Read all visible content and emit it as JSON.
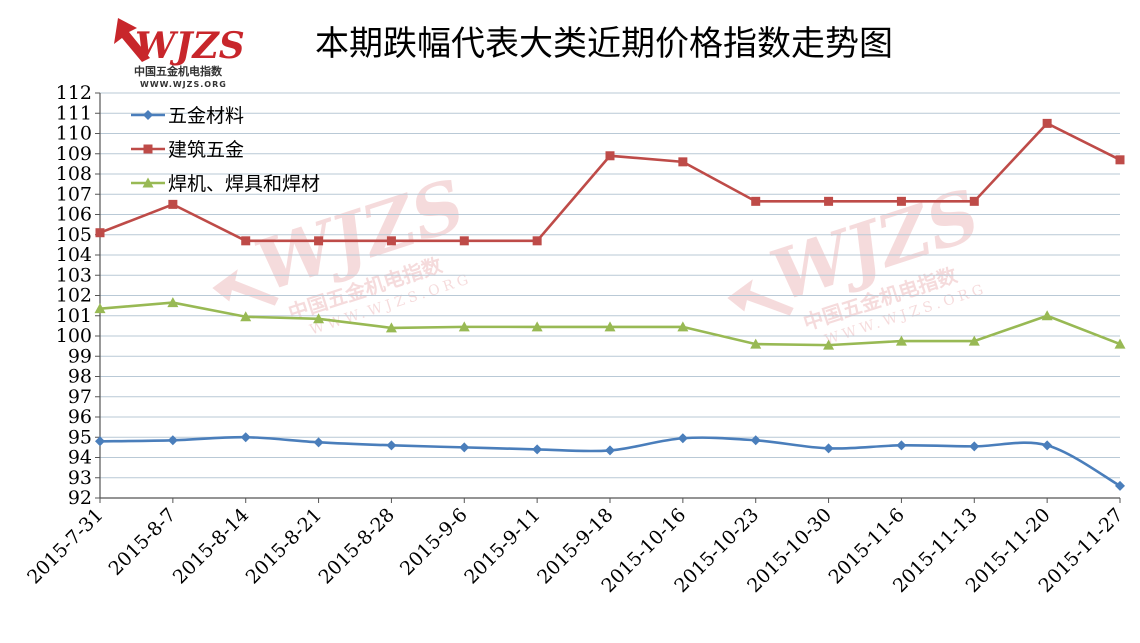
{
  "logo": {
    "mark": "WJZS",
    "subtitle": "中国五金机电指数",
    "url": "WWW.WJZS.ORG"
  },
  "chart_data": {
    "type": "line",
    "title": "本期跌幅代表大类近期价格指数走势图",
    "xlabel": "",
    "ylabel": "",
    "ylim": [
      92,
      112
    ],
    "yticks": [
      92,
      93,
      94,
      95,
      96,
      97,
      98,
      99,
      100,
      101,
      102,
      103,
      104,
      105,
      106,
      107,
      108,
      109,
      110,
      111,
      112
    ],
    "grid": true,
    "legend": "top-left",
    "categories": [
      "2015-7-31",
      "2015-8-7",
      "2015-8-14",
      "2015-8-21",
      "2015-8-28",
      "2015-9-6",
      "2015-9-11",
      "2015-9-18",
      "2015-10-16",
      "2015-10-23",
      "2015-10-30",
      "2015-11-6",
      "2015-11-13",
      "2015-11-20",
      "2015-11-27"
    ],
    "series": [
      {
        "name": "五金材料",
        "color": "#4a7ebb",
        "marker": "diamond",
        "values": [
          94.8,
          94.85,
          95.0,
          94.75,
          94.6,
          94.5,
          94.4,
          94.35,
          94.95,
          94.85,
          94.45,
          94.6,
          94.55,
          94.6,
          92.6
        ]
      },
      {
        "name": "建筑五金",
        "color": "#be4b48",
        "marker": "square",
        "values": [
          105.1,
          106.5,
          104.7,
          104.7,
          104.7,
          104.7,
          104.7,
          108.9,
          108.6,
          106.65,
          106.65,
          106.65,
          106.65,
          110.5,
          108.7
        ]
      },
      {
        "name": "焊机、焊具和焊材",
        "color": "#98b954",
        "marker": "triangle",
        "values": [
          101.35,
          101.65,
          100.95,
          100.85,
          100.4,
          100.45,
          100.45,
          100.45,
          100.45,
          99.6,
          99.55,
          99.75,
          99.75,
          101.0,
          99.6
        ]
      }
    ]
  }
}
